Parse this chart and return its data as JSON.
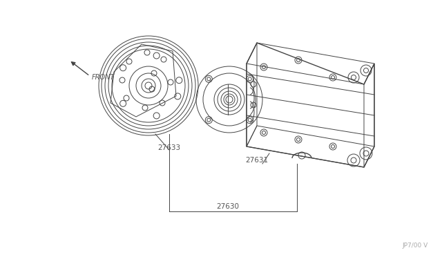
{
  "background_color": "#ffffff",
  "line_color": "#444444",
  "text_color": "#555555",
  "watermark": "JP7/00 V",
  "front_label": "FRONT",
  "label_27630": "27630",
  "label_27631": "27631",
  "label_27633": "27633",
  "label_fontsize": 7.5,
  "watermark_fontsize": 6.5,
  "front_fontsize": 7,
  "lw": 0.7,
  "lw2": 1.0,
  "lw3": 0.5
}
